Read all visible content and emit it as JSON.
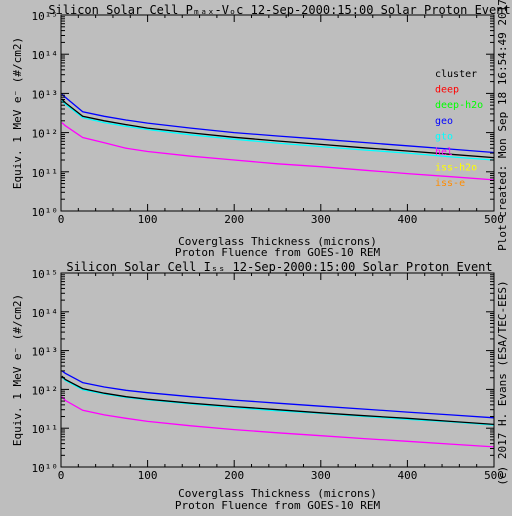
{
  "side_text": {
    "top": "Plot created: Mon Sep 18 16:54:49 2017",
    "bottom": "(c) 2017 H. Evans (ESA/TEC-EES)"
  },
  "chart_data": [
    {
      "type": "line",
      "title": "Silicon Solar Cell Pₘₐₓ-Vₒc 12-Sep-2000:15:00 Solar Proton Event",
      "xlabel": "Coverglass Thickness (microns)",
      "xlabel2": "Proton Fluence from GOES-10 REM",
      "ylabel": "Equiv. 1 MeV e⁻ (#/cm2)",
      "xlim": [
        0,
        500
      ],
      "ylim": [
        10000000000.0,
        1000000000000000.0
      ],
      "yscale": "log",
      "x_ticks": [
        "0",
        "100",
        "200",
        "300",
        "400",
        "500"
      ],
      "y_ticks": [
        "10¹⁰",
        "10¹¹",
        "10¹²",
        "10¹³",
        "10¹⁴",
        "10¹⁵"
      ],
      "legend": {
        "position": "right",
        "entries": [
          {
            "label": "cluster",
            "color": "#000000"
          },
          {
            "label": "deep",
            "color": "#ff0000"
          },
          {
            "label": "deep-h2o",
            "color": "#00ff00"
          },
          {
            "label": "geo",
            "color": "#0000ff"
          },
          {
            "label": "gto",
            "color": "#00ffff"
          },
          {
            "label": "hel",
            "color": "#ff00ff"
          },
          {
            "label": "iss-h2o",
            "color": "#ffff00"
          },
          {
            "label": "iss-e",
            "color": "#ff8c00"
          }
        ]
      },
      "x": [
        1,
        5,
        25,
        50,
        75,
        100,
        150,
        200,
        250,
        300,
        350,
        400,
        450,
        500
      ],
      "series": [
        {
          "name": "geo",
          "color": "#0000ff",
          "values": [
            9500000000000.0,
            8000000000000.0,
            3400000000000.0,
            2600000000000.0,
            2100000000000.0,
            1750000000000.0,
            1300000000000.0,
            1000000000000.0,
            820000000000.0,
            680000000000.0,
            560000000000.0,
            460000000000.0,
            380000000000.0,
            310000000000.0
          ]
        },
        {
          "name": "gto",
          "color": "#00ffff",
          "values": [
            6500000000000.0,
            5300000000000.0,
            2400000000000.0,
            1800000000000.0,
            1450000000000.0,
            1200000000000.0,
            880000000000.0,
            680000000000.0,
            540000000000.0,
            440000000000.0,
            360000000000.0,
            300000000000.0,
            240000000000.0,
            200000000000.0
          ]
        },
        {
          "name": "cluster",
          "color": "#000000",
          "values": [
            7200000000000.0,
            5800000000000.0,
            2600000000000.0,
            2000000000000.0,
            1600000000000.0,
            1300000000000.0,
            980000000000.0,
            760000000000.0,
            610000000000.0,
            500000000000.0,
            410000000000.0,
            340000000000.0,
            280000000000.0,
            230000000000.0
          ]
        },
        {
          "name": "hel",
          "color": "#ff00ff",
          "values": [
            1800000000000.0,
            1500000000000.0,
            750000000000.0,
            550000000000.0,
            400000000000.0,
            330000000000.0,
            250000000000.0,
            200000000000.0,
            160000000000.0,
            135000000000.0,
            110000000000.0,
            90000000000.0,
            75000000000.0,
            62000000000.0
          ]
        }
      ]
    },
    {
      "type": "line",
      "title": "Silicon Solar Cell Iₛₛ 12-Sep-2000:15:00 Solar Proton Event",
      "xlabel": "Coverglass Thickness (microns)",
      "xlabel2": "Proton Fluence from GOES-10 REM",
      "ylabel": "Equiv. 1 MeV e⁻ (#/cm2)",
      "xlim": [
        0,
        500
      ],
      "ylim": [
        10000000000.0,
        1000000000000000.0
      ],
      "yscale": "log",
      "x_ticks": [
        "0",
        "100",
        "200",
        "300",
        "400",
        "500"
      ],
      "y_ticks": [
        "10¹⁰",
        "10¹¹",
        "10¹²",
        "10¹³",
        "10¹⁴",
        "10¹⁵"
      ],
      "x": [
        1,
        5,
        25,
        50,
        75,
        100,
        150,
        200,
        250,
        300,
        350,
        400,
        450,
        500
      ],
      "series": [
        {
          "name": "geo",
          "color": "#0000ff",
          "values": [
            3000000000000.0,
            2600000000000.0,
            1500000000000.0,
            1150000000000.0,
            950000000000.0,
            820000000000.0,
            650000000000.0,
            530000000000.0,
            440000000000.0,
            370000000000.0,
            310000000000.0,
            260000000000.0,
            220000000000.0,
            185000000000.0
          ]
        },
        {
          "name": "gto",
          "color": "#00ffff",
          "values": [
            2100000000000.0,
            1700000000000.0,
            980000000000.0,
            760000000000.0,
            620000000000.0,
            540000000000.0,
            420000000000.0,
            340000000000.0,
            280000000000.0,
            240000000000.0,
            200000000000.0,
            170000000000.0,
            145000000000.0,
            120000000000.0
          ]
        },
        {
          "name": "cluster",
          "color": "#000000",
          "values": [
            2200000000000.0,
            1800000000000.0,
            1050000000000.0,
            800000000000.0,
            650000000000.0,
            560000000000.0,
            440000000000.0,
            360000000000.0,
            300000000000.0,
            250000000000.0,
            210000000000.0,
            180000000000.0,
            150000000000.0,
            125000000000.0
          ]
        },
        {
          "name": "hel",
          "color": "#ff00ff",
          "values": [
            650000000000.0,
            520000000000.0,
            290000000000.0,
            220000000000.0,
            180000000000.0,
            150000000000.0,
            115000000000.0,
            92000000000.0,
            76000000000.0,
            64000000000.0,
            54000000000.0,
            46000000000.0,
            39000000000.0,
            33000000000.0
          ]
        }
      ]
    }
  ]
}
